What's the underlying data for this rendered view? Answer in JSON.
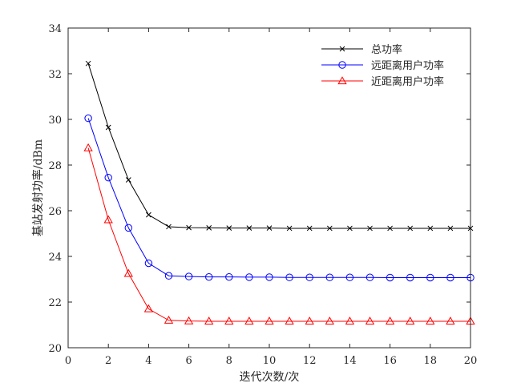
{
  "chart_data": {
    "type": "line",
    "xlabel": "迭代次数/次",
    "ylabel": "基站发射功率/dBm",
    "xlim": [
      0,
      20
    ],
    "ylim": [
      20,
      34
    ],
    "xticks": [
      0,
      2,
      4,
      6,
      8,
      10,
      12,
      14,
      16,
      18,
      20
    ],
    "yticks": [
      20,
      22,
      24,
      26,
      28,
      30,
      32,
      34
    ],
    "grid": false,
    "legend_position": "top-right",
    "x": [
      1,
      2,
      3,
      4,
      5,
      6,
      7,
      8,
      9,
      10,
      11,
      12,
      13,
      14,
      15,
      16,
      17,
      18,
      19,
      20
    ],
    "series": [
      {
        "name": "总功率",
        "color": "#000000",
        "marker": "x",
        "values": [
          32.45,
          29.65,
          27.35,
          25.82,
          25.3,
          25.26,
          25.25,
          25.24,
          25.24,
          25.24,
          25.23,
          25.23,
          25.23,
          25.23,
          25.23,
          25.23,
          25.23,
          25.23,
          25.23,
          25.23
        ]
      },
      {
        "name": "远距离用户功率",
        "color": "#0000ff",
        "marker": "circle",
        "values": [
          30.05,
          27.45,
          25.25,
          23.7,
          23.15,
          23.12,
          23.1,
          23.1,
          23.09,
          23.09,
          23.08,
          23.08,
          23.08,
          23.08,
          23.08,
          23.07,
          23.07,
          23.07,
          23.07,
          23.07
        ]
      },
      {
        "name": "近距离用户功率",
        "color": "#ff0000",
        "marker": "triangle",
        "values": [
          28.75,
          25.6,
          23.25,
          21.7,
          21.2,
          21.17,
          21.16,
          21.16,
          21.16,
          21.16,
          21.16,
          21.16,
          21.16,
          21.16,
          21.16,
          21.16,
          21.16,
          21.16,
          21.16,
          21.16
        ]
      }
    ]
  }
}
